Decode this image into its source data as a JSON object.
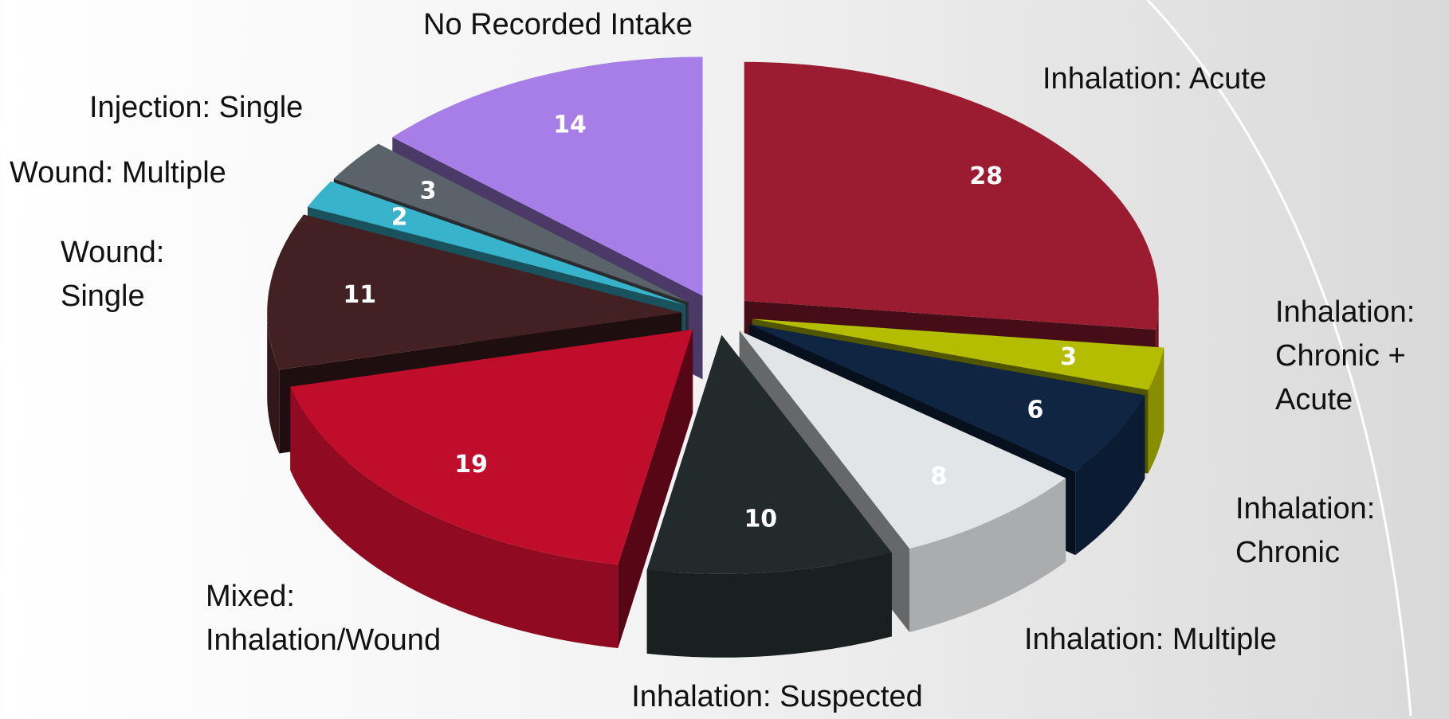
{
  "chart_data": {
    "type": "pie3d",
    "categories": [
      "Inhalation: Acute",
      "Inhalation: Chronic + Acute",
      "Inhalation: Chronic",
      "Inhalation: Multiple",
      "Inhalation: Suspected",
      "Mixed: Inhalation/Wound",
      "Wound: Single",
      "Wound: Multiple",
      "Injection: Single",
      "No Recorded Intake"
    ],
    "values": [
      28,
      3,
      6,
      8,
      10,
      19,
      11,
      2,
      3,
      14
    ],
    "colors": [
      "#9b1c31",
      "#b5bd00",
      "#0f2542",
      "#e2e5e8",
      "#222a2b",
      "#c00d2c",
      "#432022",
      "#38b3cc",
      "#5a636a",
      "#a77ee8"
    ]
  }
}
